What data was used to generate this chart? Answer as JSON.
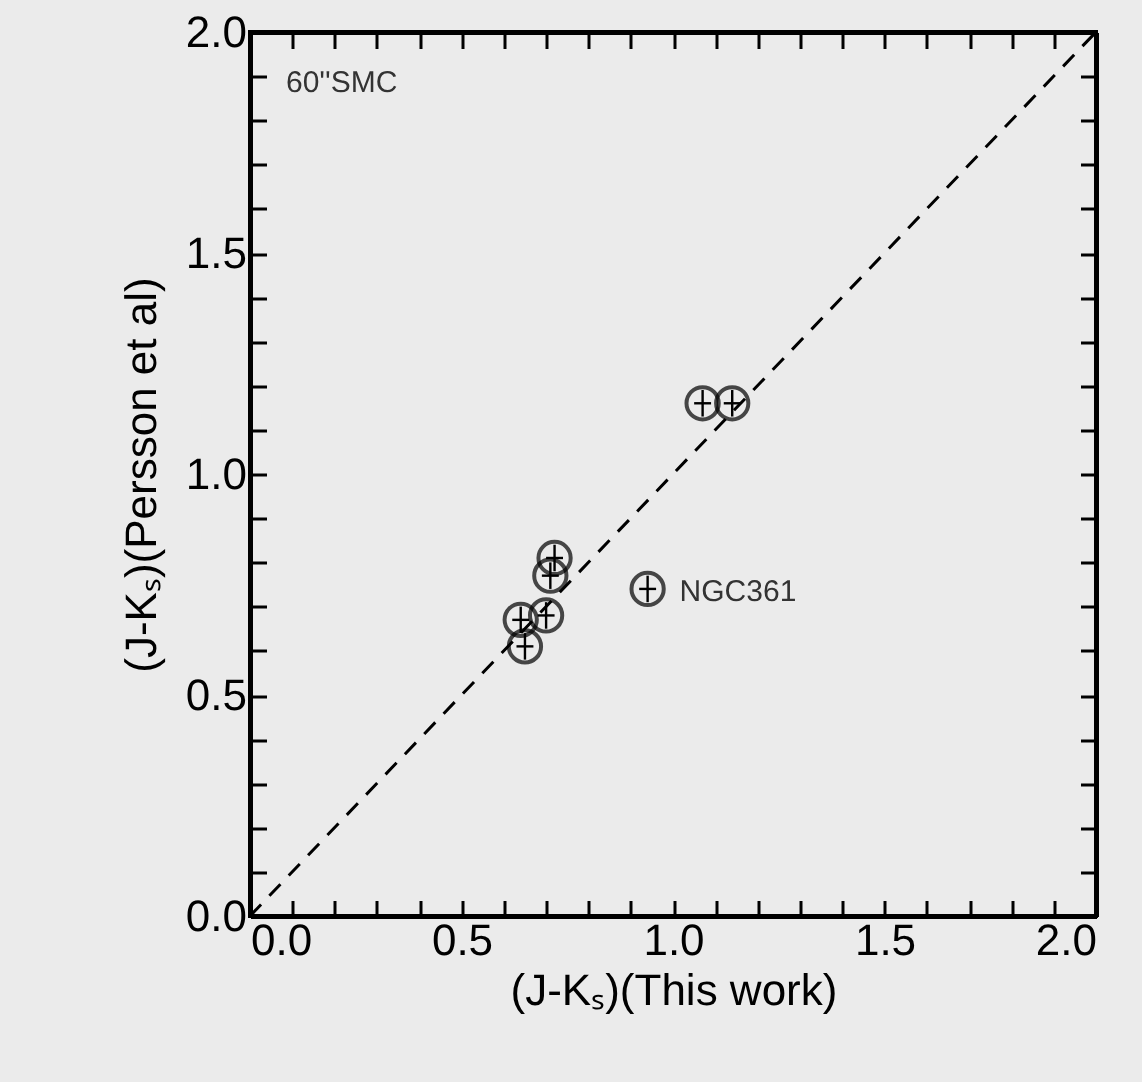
{
  "chart_data": {
    "type": "scatter",
    "xlabel": "(J-Kₛ)(This work)",
    "ylabel": "(J-Kₛ)(Persson et al)",
    "xlim": [
      0,
      2
    ],
    "ylim": [
      0,
      2
    ],
    "xticks": [
      {
        "value": 0,
        "label": "0.0"
      },
      {
        "value": 0.1,
        "label": null
      },
      {
        "value": 0.2,
        "label": null
      },
      {
        "value": 0.3,
        "label": null
      },
      {
        "value": 0.4,
        "label": null
      },
      0.5,
      {
        "value": 0.6,
        "label": null
      },
      {
        "value": 0.7,
        "label": null
      },
      {
        "value": 0.8,
        "label": null
      },
      {
        "value": 0.9,
        "label": null
      },
      {
        "value": 1,
        "label": "1.0"
      },
      {
        "value": 1.1,
        "label": null
      },
      {
        "value": 1.2,
        "label": null
      },
      {
        "value": 1.3,
        "label": null
      },
      {
        "value": 1.4,
        "label": null
      },
      1.5,
      {
        "value": 1.6,
        "label": null
      },
      {
        "value": 1.7,
        "label": null
      },
      {
        "value": 1.8,
        "label": null
      },
      {
        "value": 1.9,
        "label": null
      },
      {
        "value": 2,
        "label": "2.0"
      }
    ],
    "yticks": [
      {
        "value": 0,
        "label": "0.0"
      },
      {
        "value": 0.1,
        "label": null
      },
      {
        "value": 0.2,
        "label": null
      },
      {
        "value": 0.3,
        "label": null
      },
      {
        "value": 0.4,
        "label": null
      },
      0.5,
      {
        "value": 0.6,
        "label": null
      },
      {
        "value": 0.7,
        "label": null
      },
      {
        "value": 0.8,
        "label": null
      },
      {
        "value": 0.9,
        "label": null
      },
      {
        "value": 1,
        "label": "1.0"
      },
      {
        "value": 1.1,
        "label": null
      },
      {
        "value": 1.2,
        "label": null
      },
      {
        "value": 1.3,
        "label": null
      },
      {
        "value": 1.4,
        "label": null
      },
      1.5,
      {
        "value": 1.6,
        "label": null
      },
      {
        "value": 1.7,
        "label": null
      },
      {
        "value": 1.8,
        "label": null
      },
      {
        "value": 1.9,
        "label": null
      },
      {
        "value": 2,
        "label": "2.0"
      }
    ],
    "grid": false,
    "marker": "circle",
    "series": [
      {
        "type": "line",
        "color": "#000000",
        "line_style": "dashed",
        "marker": "none",
        "x": [
          0,
          2
        ],
        "values": [
          0,
          2
        ]
      },
      {
        "color": "#000000",
        "x": [
          1.07,
          1.14,
          0.72,
          0.71,
          0.7,
          0.64,
          0.65,
          0.94
        ],
        "values": [
          1.16,
          1.16,
          0.81,
          0.77,
          0.68,
          0.67,
          0.61,
          0.74
        ],
        "errors": [
          0.03,
          0.03,
          0.03,
          0.03,
          0.03,
          0.03,
          0.03,
          0.03
        ],
        "xerrors": [
          0.02,
          0.02,
          0.02,
          0.02,
          0.02,
          0.02,
          0.02,
          0.02
        ]
      }
    ],
    "annotations": [
      "60''SMC",
      {
        "text": "NGC361",
        "x": 0.94,
        "y": 0.74
      }
    ]
  }
}
